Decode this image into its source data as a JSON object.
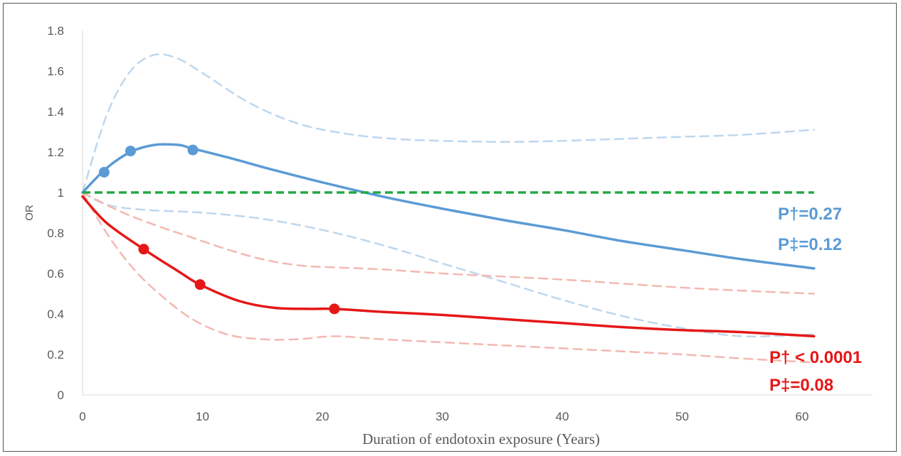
{
  "chart_data": {
    "type": "line",
    "xlabel": "Duration of endotoxin exposure (Years)",
    "ylabel": "OR",
    "xlim": [
      0,
      62
    ],
    "ylim": [
      0,
      1.8
    ],
    "x_ticks": [
      "0",
      "10",
      "20",
      "30",
      "40",
      "50",
      "60"
    ],
    "y_ticks": [
      "0",
      "0.2",
      "0.4",
      "0.6",
      "0.8",
      "1",
      "1.2",
      "1.4",
      "1.6",
      "1.8"
    ],
    "grid": false,
    "reference_line": {
      "y": 1,
      "color": "#22a844",
      "style": "dashed"
    },
    "series": [
      {
        "color": "#5b9bd5",
        "style": "solid",
        "x": [
          0,
          2,
          4,
          6,
          8,
          9,
          12,
          16,
          20,
          25,
          30,
          35,
          40,
          45,
          50,
          55,
          61
        ],
        "y": [
          1.0,
          1.12,
          1.2,
          1.235,
          1.235,
          1.22,
          1.175,
          1.11,
          1.05,
          0.98,
          0.92,
          0.865,
          0.815,
          0.76,
          0.715,
          0.67,
          0.625
        ],
        "markers": {
          "x": [
            1.8,
            4,
            9.2
          ],
          "y": [
            1.1,
            1.205,
            1.21
          ]
        }
      },
      {
        "color": "#bdd7ee",
        "style": "dashed",
        "x": [
          0,
          2,
          4,
          6,
          8,
          10,
          14,
          18,
          22,
          26,
          30,
          35,
          40,
          45,
          50,
          55,
          61
        ],
        "y": [
          1.0,
          1.38,
          1.6,
          1.68,
          1.66,
          1.59,
          1.44,
          1.34,
          1.29,
          1.265,
          1.255,
          1.25,
          1.255,
          1.265,
          1.275,
          1.285,
          1.31
        ]
      },
      {
        "color": "#bdd7ee",
        "style": "dashed",
        "x": [
          0,
          2,
          5,
          10,
          15,
          20,
          25,
          30,
          35,
          40,
          45,
          50,
          55,
          61
        ],
        "y": [
          1.0,
          0.94,
          0.915,
          0.9,
          0.87,
          0.815,
          0.74,
          0.65,
          0.56,
          0.47,
          0.39,
          0.33,
          0.29,
          0.3
        ]
      },
      {
        "color": "#e51717",
        "style": "solid",
        "x": [
          0,
          2,
          5.1,
          8,
          9.8,
          13,
          16,
          19,
          21,
          25,
          30,
          35,
          40,
          45,
          50,
          55,
          61
        ],
        "y": [
          0.98,
          0.85,
          0.72,
          0.61,
          0.545,
          0.465,
          0.43,
          0.425,
          0.425,
          0.41,
          0.395,
          0.375,
          0.355,
          0.335,
          0.32,
          0.31,
          0.29
        ],
        "markers": {
          "x": [
            5.1,
            9.8,
            21
          ],
          "y": [
            0.72,
            0.545,
            0.425
          ]
        }
      },
      {
        "color": "#f4b8b1",
        "style": "dashed",
        "x": [
          0,
          3,
          6,
          9,
          12,
          15,
          18,
          21,
          25,
          30,
          35,
          40,
          45,
          50,
          55,
          61
        ],
        "y": [
          1.0,
          0.91,
          0.84,
          0.78,
          0.72,
          0.67,
          0.64,
          0.63,
          0.62,
          0.6,
          0.585,
          0.57,
          0.55,
          0.53,
          0.515,
          0.5
        ]
      },
      {
        "color": "#f4b8b1",
        "style": "dashed",
        "x": [
          0,
          2,
          4,
          6,
          9,
          12,
          15,
          18,
          21,
          25,
          30,
          35,
          40,
          45,
          50,
          55,
          61
        ],
        "y": [
          1.0,
          0.8,
          0.64,
          0.52,
          0.38,
          0.3,
          0.275,
          0.275,
          0.29,
          0.275,
          0.26,
          0.245,
          0.23,
          0.215,
          0.2,
          0.18,
          0.16
        ]
      }
    ],
    "annotations": [
      {
        "text": "P†=0.27",
        "color": "#5b9bd5"
      },
      {
        "text": "P‡=0.12",
        "color": "#5b9bd5"
      },
      {
        "text": "P† < 0.0001",
        "color": "#e51717"
      },
      {
        "text": "P‡=0.08",
        "color": "#e51717"
      }
    ]
  }
}
